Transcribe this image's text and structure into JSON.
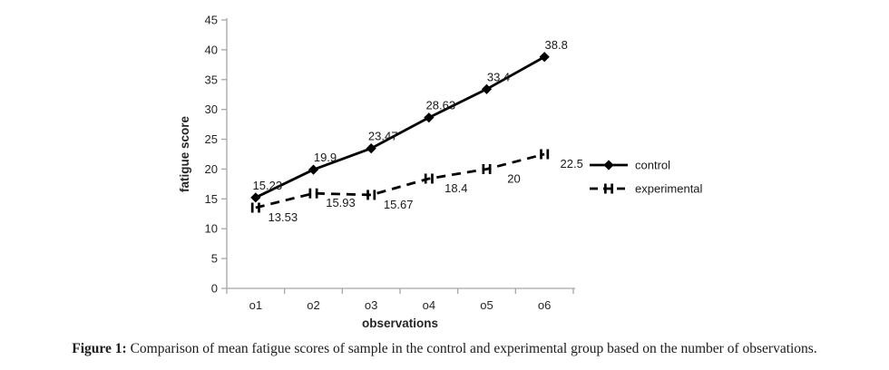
{
  "figure": {
    "caption_label": "Figure 1:",
    "caption_text": " Comparison of mean fatigue scores of sample in the control and experimental group based on the number of observations."
  },
  "chart_data": {
    "type": "line",
    "categories": [
      "o1",
      "o2",
      "o3",
      "o4",
      "o5",
      "o6"
    ],
    "series": [
      {
        "name": "control",
        "values": [
          15.23,
          19.9,
          23.47,
          28.63,
          33.4,
          38.8
        ],
        "point_labels": [
          "15.23",
          "19.9",
          "23.47",
          "28.63",
          "33.4",
          "38.8"
        ],
        "line_style": "solid",
        "marker": "diamond"
      },
      {
        "name": "experimental",
        "values": [
          13.53,
          15.93,
          15.67,
          18.4,
          20,
          22.5
        ],
        "point_labels": [
          "13.53",
          "15.93",
          "15.67",
          "18.4",
          "20",
          "22.5"
        ],
        "line_style": "dashed",
        "marker": "double-dash"
      }
    ],
    "xlabel": "observations",
    "ylabel": "fatigue score",
    "ylim": [
      0,
      45
    ],
    "y_ticks": [
      0,
      5,
      10,
      15,
      20,
      25,
      30,
      35,
      40,
      45
    ],
    "grid": false,
    "legend_position": "right",
    "colors": {
      "series": "#000000",
      "axis": "#a6a6a6",
      "text": "#262626"
    }
  }
}
